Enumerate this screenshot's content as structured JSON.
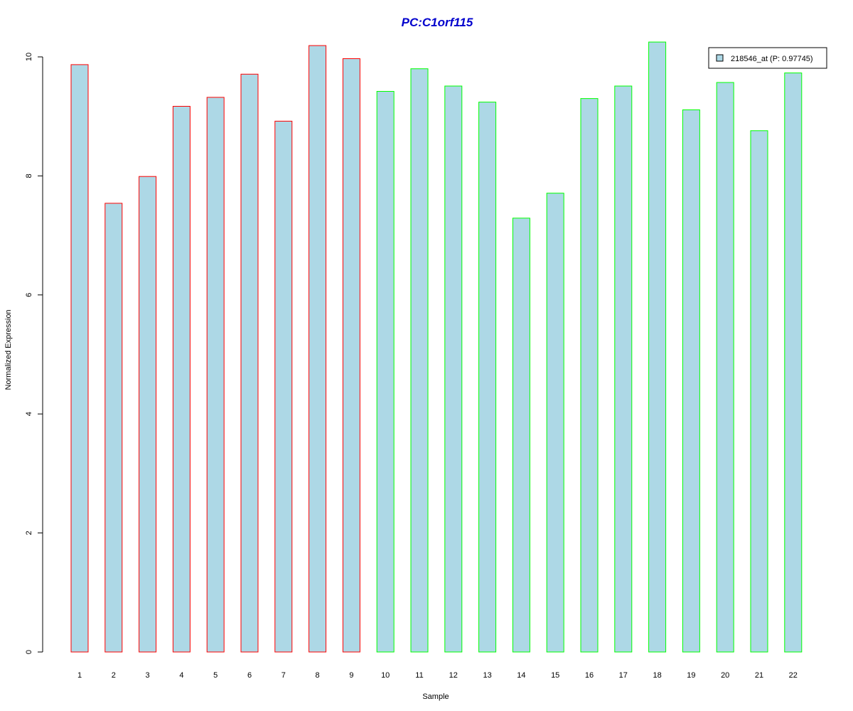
{
  "chart_data": {
    "type": "bar",
    "title": "PC:C1orf115",
    "xlabel": "Sample",
    "ylabel": "Normalized Expression",
    "categories": [
      "1",
      "2",
      "3",
      "4",
      "5",
      "6",
      "7",
      "8",
      "9",
      "10",
      "11",
      "12",
      "13",
      "14",
      "15",
      "16",
      "17",
      "18",
      "19",
      "20",
      "21",
      "22"
    ],
    "values": [
      9.87,
      7.54,
      7.99,
      9.17,
      9.32,
      9.71,
      8.92,
      10.19,
      9.97,
      9.42,
      9.8,
      9.51,
      9.24,
      7.29,
      7.71,
      9.3,
      9.51,
      10.25,
      9.11,
      9.57,
      8.76,
      9.73
    ],
    "group_colors": [
      "#ff0000",
      "#ff0000",
      "#ff0000",
      "#ff0000",
      "#ff0000",
      "#ff0000",
      "#ff0000",
      "#ff0000",
      "#ff0000",
      "#00ff00",
      "#00ff00",
      "#00ff00",
      "#00ff00",
      "#00ff00",
      "#00ff00",
      "#00ff00",
      "#00ff00",
      "#00ff00",
      "#00ff00",
      "#00ff00",
      "#00ff00",
      "#00ff00"
    ],
    "ylim": [
      0,
      10.25
    ],
    "yticks": [
      0,
      2,
      4,
      6,
      8,
      10
    ],
    "grid": false,
    "legend": {
      "position": "top-right",
      "entries": [
        {
          "label": "218546_at (P: 0.97745)",
          "color": "#add8e6"
        }
      ]
    },
    "colors": {
      "fill": "#add8e6",
      "title": "#0000cd"
    }
  }
}
